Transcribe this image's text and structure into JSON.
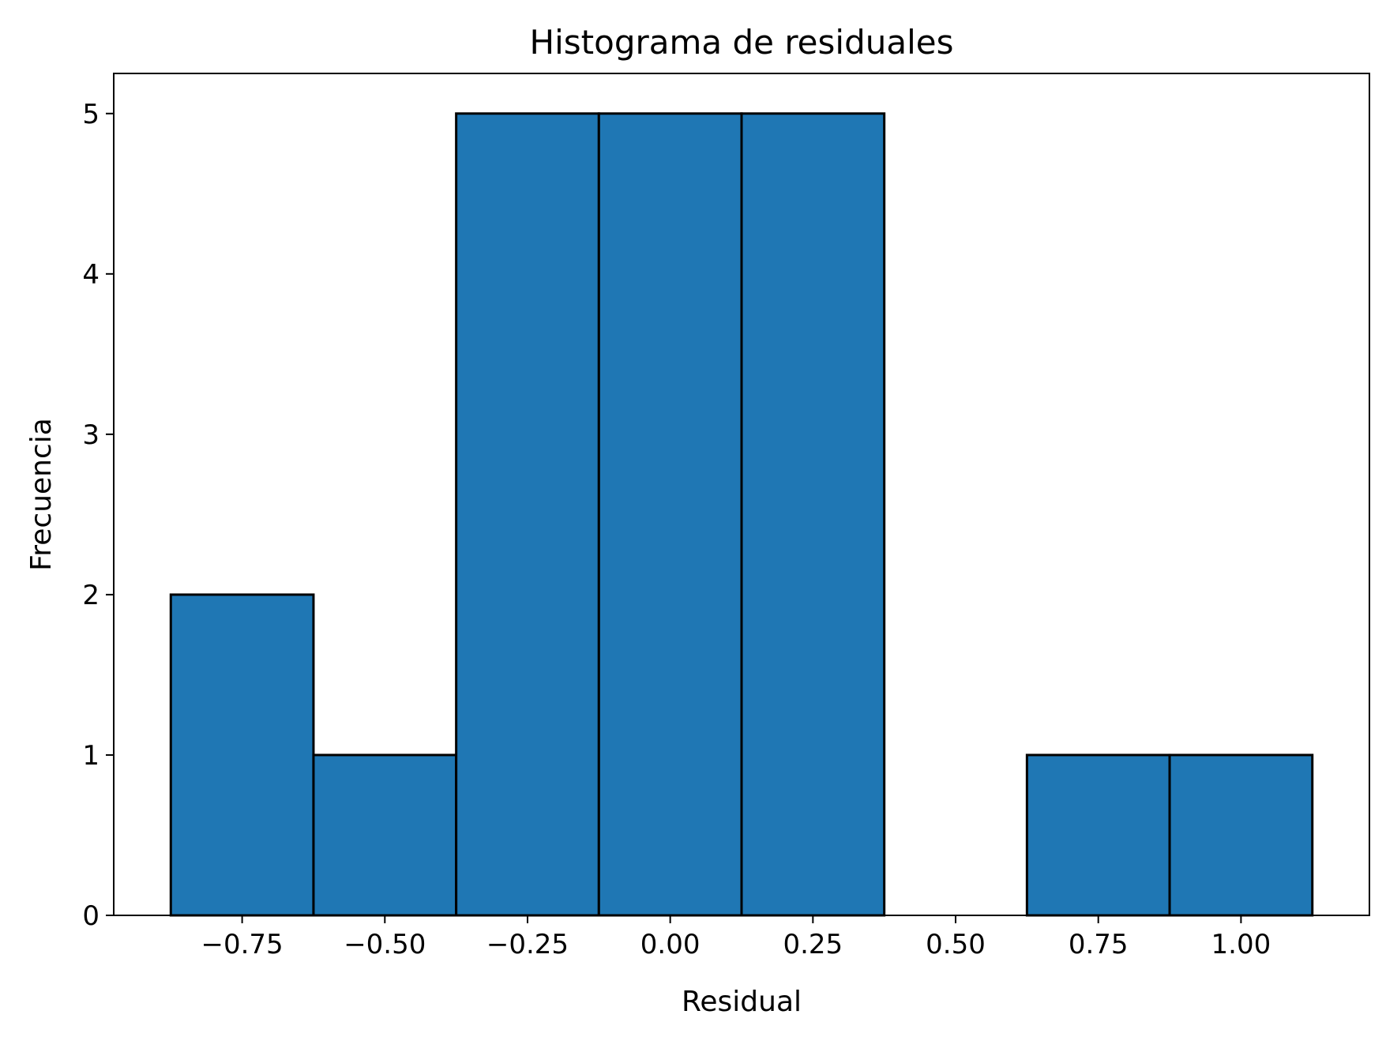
{
  "chart_data": {
    "type": "bar",
    "title": "Histograma de residuales",
    "xlabel": "Residual",
    "ylabel": "Frecuencia",
    "bins": [
      {
        "start": -0.875,
        "end": -0.625,
        "count": 2
      },
      {
        "start": -0.625,
        "end": -0.375,
        "count": 1
      },
      {
        "start": -0.375,
        "end": -0.125,
        "count": 5
      },
      {
        "start": -0.125,
        "end": 0.125,
        "count": 5
      },
      {
        "start": 0.125,
        "end": 0.375,
        "count": 5
      },
      {
        "start": 0.375,
        "end": 0.625,
        "count": 0
      },
      {
        "start": 0.625,
        "end": 0.875,
        "count": 1
      },
      {
        "start": 0.875,
        "end": 1.125,
        "count": 1
      }
    ],
    "xlim": [
      -0.975,
      1.225
    ],
    "ylim": [
      0,
      5.25
    ],
    "xticks": [
      {
        "value": -0.75,
        "label": "−0.75"
      },
      {
        "value": -0.5,
        "label": "−0.50"
      },
      {
        "value": -0.25,
        "label": "−0.25"
      },
      {
        "value": 0.0,
        "label": "0.00"
      },
      {
        "value": 0.25,
        "label": "0.25"
      },
      {
        "value": 0.5,
        "label": "0.50"
      },
      {
        "value": 0.75,
        "label": "0.75"
      },
      {
        "value": 1.0,
        "label": "1.00"
      }
    ],
    "yticks": [
      {
        "value": 0,
        "label": "0"
      },
      {
        "value": 1,
        "label": "1"
      },
      {
        "value": 2,
        "label": "2"
      },
      {
        "value": 3,
        "label": "3"
      },
      {
        "value": 4,
        "label": "4"
      },
      {
        "value": 5,
        "label": "5"
      }
    ],
    "bar_color": "#1f77b4",
    "edge_color": "#000000",
    "grid": false
  }
}
